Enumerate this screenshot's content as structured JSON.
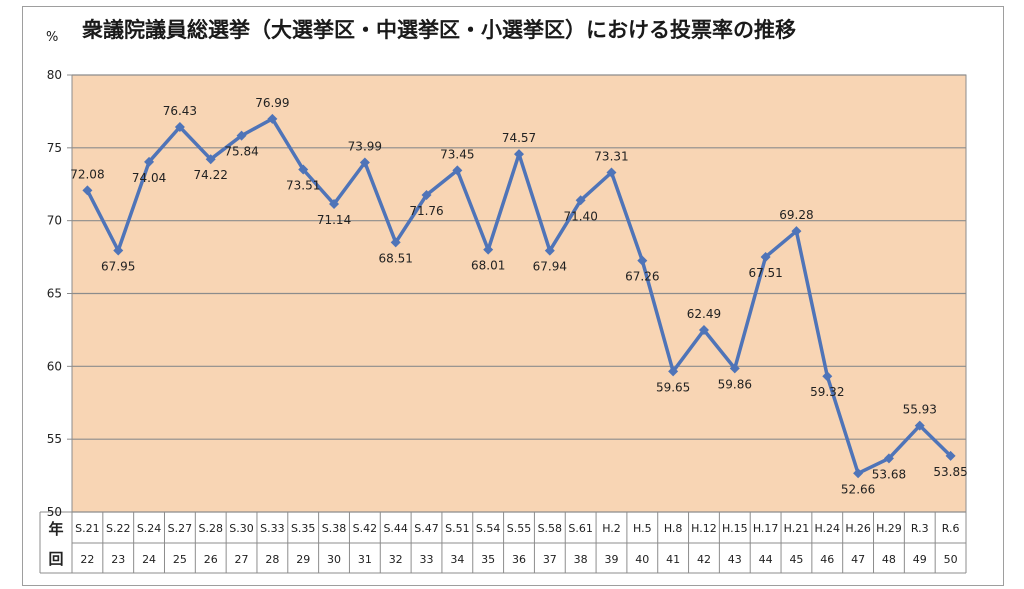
{
  "chart_data": {
    "type": "line",
    "title": "衆議院議員総選挙（大選挙区・中選挙区・小選挙区）における投票率の推移",
    "ylabel": "%",
    "ylim": [
      50,
      80
    ],
    "yticks": [
      50,
      55,
      60,
      65,
      70,
      75,
      80
    ],
    "grid": true,
    "legend": "none",
    "plot_background": "#F8D5B4",
    "line_color": "#4F74B8",
    "row_labels": [
      "年",
      "回"
    ],
    "categories": [
      "S.21",
      "S.22",
      "S.24",
      "S.27",
      "S.28",
      "S.30",
      "S.33",
      "S.35",
      "S.38",
      "S.42",
      "S.44",
      "S.47",
      "S.51",
      "S.54",
      "S.55",
      "S.58",
      "S.61",
      "H.2",
      "H.5",
      "H.8",
      "H.12",
      "H.15",
      "H.17",
      "H.21",
      "H.24",
      "H.26",
      "H.29",
      "R.3",
      "R.6"
    ],
    "election_numbers": [
      "22",
      "23",
      "24",
      "25",
      "26",
      "27",
      "28",
      "29",
      "30",
      "31",
      "32",
      "33",
      "34",
      "35",
      "36",
      "37",
      "38",
      "39",
      "40",
      "41",
      "42",
      "43",
      "44",
      "45",
      "46",
      "47",
      "48",
      "49",
      "50"
    ],
    "values": [
      72.08,
      67.95,
      74.04,
      76.43,
      74.22,
      75.84,
      76.99,
      73.51,
      71.14,
      73.99,
      68.51,
      71.76,
      73.45,
      68.01,
      74.57,
      67.94,
      71.4,
      73.31,
      67.26,
      59.65,
      62.49,
      59.86,
      67.51,
      69.28,
      59.32,
      52.66,
      53.68,
      55.93,
      53.85
    ],
    "data_labels": [
      "72.08",
      "67.95",
      "74.04",
      "76.43",
      "74.22",
      "75.84",
      "76.99",
      "73.51",
      "71.14",
      "73.99",
      "68.51",
      "71.76",
      "73.45",
      "68.01",
      "74.57",
      "67.94",
      "71.40",
      "73.31",
      "67.26",
      "59.65",
      "62.49",
      "59.86",
      "67.51",
      "69.28",
      "59.32",
      "52.66",
      "53.68",
      "55.93",
      "53.85"
    ]
  }
}
